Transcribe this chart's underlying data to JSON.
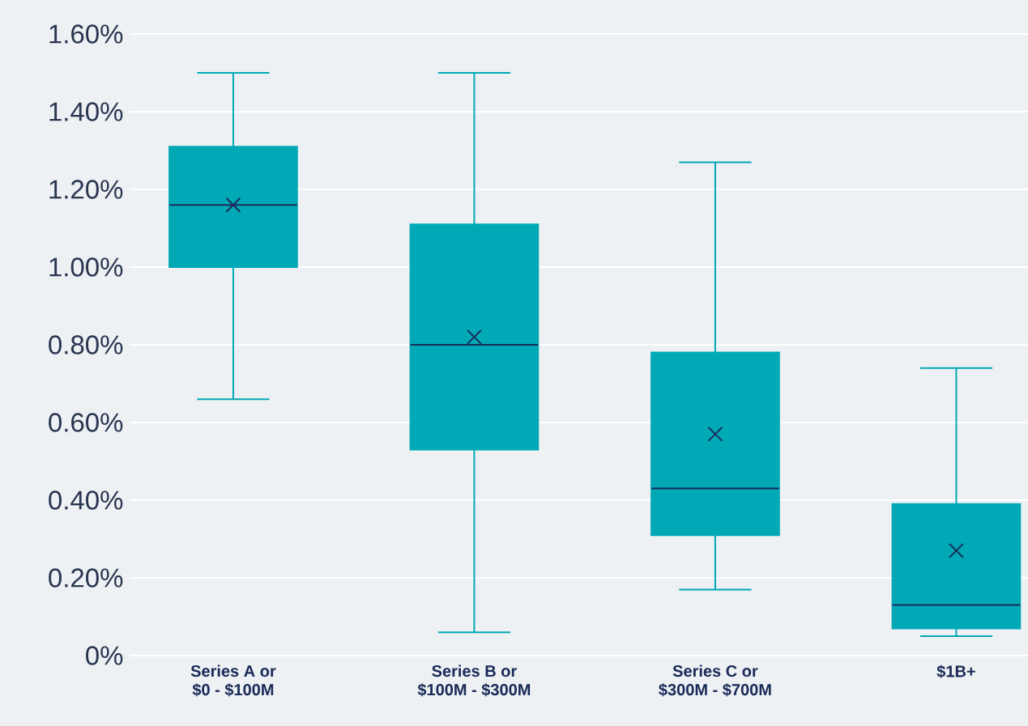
{
  "chart_data": {
    "type": "box",
    "color": "#00a9b5",
    "marker": "cross",
    "categories": [
      "Series A or\n$0 - $100M",
      "Series B or\n$100M - $300M",
      "Series C or\n$300M - $700M",
      "$1B+"
    ],
    "boxes": [
      {
        "low": 0.66,
        "q1": 1.0,
        "median": 1.16,
        "q3": 1.31,
        "high": 1.5,
        "mean": 1.16
      },
      {
        "low": 0.06,
        "q1": 0.53,
        "median": 0.8,
        "q3": 1.11,
        "high": 1.5,
        "mean": 0.82
      },
      {
        "low": 0.17,
        "q1": 0.31,
        "median": 0.43,
        "q3": 0.78,
        "high": 1.27,
        "mean": 0.57
      },
      {
        "low": 0.05,
        "q1": 0.07,
        "median": 0.13,
        "q3": 0.39,
        "high": 0.74,
        "mean": 0.27
      }
    ],
    "ylim": [
      0,
      1.68
    ],
    "yticks": [
      {
        "value": 0,
        "label": "0%"
      },
      {
        "value": 0.2,
        "label": "0.20%"
      },
      {
        "value": 0.4,
        "label": "0.40%"
      },
      {
        "value": 0.6,
        "label": "0.60%"
      },
      {
        "value": 0.8,
        "label": "0.80%"
      },
      {
        "value": 1.0,
        "label": "1.00%"
      },
      {
        "value": 1.2,
        "label": "1.20%"
      },
      {
        "value": 1.4,
        "label": "1.40%"
      },
      {
        "value": 1.6,
        "label": "1.60%"
      }
    ],
    "grid": "y"
  }
}
